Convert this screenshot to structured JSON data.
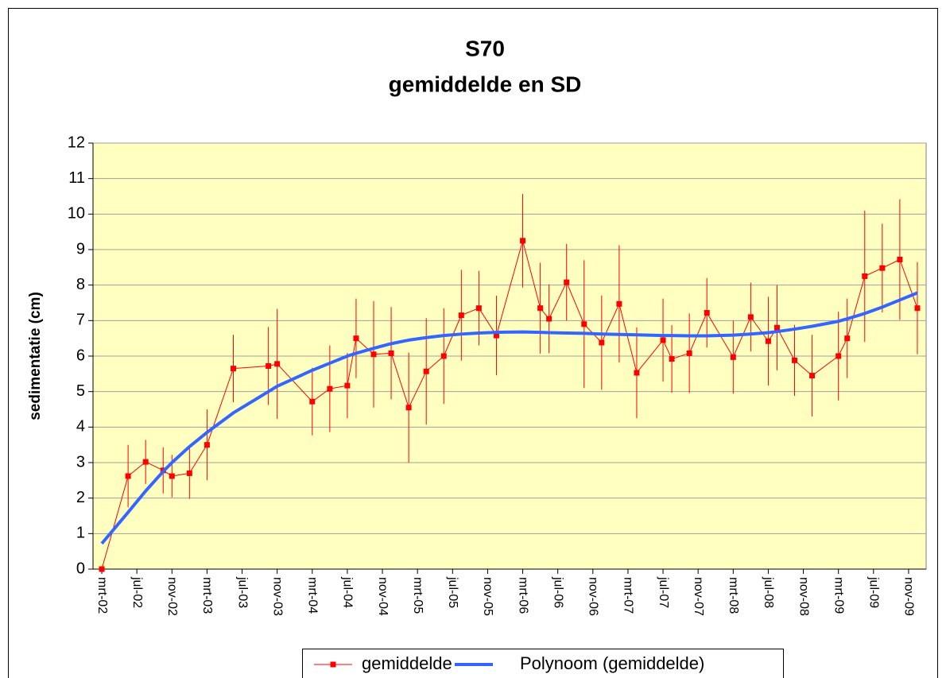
{
  "chart_data": {
    "type": "line",
    "title": "S70",
    "subtitle": "gemiddelde en SD",
    "y_label": "sedimentatie (cm)",
    "x": [
      "2002-03",
      "2002-06",
      "2002-08",
      "2002-10",
      "2002-11",
      "2003-01",
      "2003-03",
      "2003-06",
      "2003-10",
      "2003-11",
      "2004-03",
      "2004-05",
      "2004-07",
      "2004-08",
      "2004-10",
      "2004-12",
      "2005-02",
      "2005-04",
      "2005-06",
      "2005-08",
      "2005-10",
      "2005-12",
      "2006-03",
      "2006-05",
      "2006-06",
      "2006-08",
      "2006-10",
      "2006-12",
      "2007-02",
      "2007-04",
      "2007-07",
      "2007-08",
      "2007-10",
      "2007-12",
      "2008-03",
      "2008-05",
      "2008-07",
      "2008-08",
      "2008-10",
      "2008-12",
      "2009-03",
      "2009-04",
      "2009-06",
      "2009-08",
      "2009-10",
      "2009-12"
    ],
    "series": [
      {
        "name": "gemiddelde",
        "color": "#ff0000",
        "marker": "square",
        "values": [
          0.0,
          2.62,
          3.02,
          2.78,
          2.62,
          2.7,
          3.5,
          5.65,
          5.72,
          5.78,
          4.72,
          5.08,
          5.17,
          6.5,
          6.05,
          6.08,
          4.55,
          5.57,
          6.0,
          7.15,
          7.35,
          6.58,
          9.25,
          7.35,
          7.05,
          8.08,
          6.9,
          6.38,
          7.47,
          5.53,
          6.45,
          5.92,
          6.08,
          7.22,
          5.97,
          7.1,
          6.42,
          6.8,
          5.88,
          5.45,
          6.0,
          6.5,
          8.25,
          8.48,
          8.72,
          7.35
        ],
        "errors": [
          0.0,
          0.88,
          0.62,
          0.65,
          0.6,
          0.72,
          1.0,
          0.95,
          1.1,
          1.55,
          0.95,
          1.22,
          0.92,
          1.12,
          1.5,
          1.3,
          1.55,
          1.5,
          1.35,
          1.28,
          1.05,
          1.12,
          1.32,
          1.28,
          0.97,
          1.08,
          1.8,
          1.33,
          1.65,
          1.28,
          1.17,
          0.95,
          1.12,
          0.98,
          1.03,
          0.97,
          1.25,
          1.2,
          1.0,
          1.15,
          1.25,
          1.12,
          1.85,
          1.25,
          1.7,
          1.3
        ]
      },
      {
        "name": "Polynoom (gemiddelde)",
        "color": "#3366ff",
        "marker": "none",
        "values": [
          0.72,
          1.6,
          2.2,
          2.75,
          3.0,
          3.45,
          3.85,
          4.4,
          5.0,
          5.15,
          5.6,
          5.8,
          6.0,
          6.08,
          6.22,
          6.35,
          6.45,
          6.52,
          6.58,
          6.62,
          6.65,
          6.67,
          6.68,
          6.67,
          6.66,
          6.65,
          6.64,
          6.62,
          6.61,
          6.6,
          6.58,
          6.58,
          6.57,
          6.57,
          6.59,
          6.62,
          6.66,
          6.69,
          6.76,
          6.84,
          6.98,
          7.05,
          7.2,
          7.38,
          7.58,
          7.78
        ]
      }
    ],
    "xlim": [
      "2002-02",
      "2010-01"
    ],
    "xticks": [
      {
        "value": "2002-03",
        "label": "mrt-02"
      },
      {
        "value": "2002-07",
        "label": "jul-02"
      },
      {
        "value": "2002-11",
        "label": "nov-02"
      },
      {
        "value": "2003-03",
        "label": "mrt-03"
      },
      {
        "value": "2003-07",
        "label": "jul-03"
      },
      {
        "value": "2003-11",
        "label": "nov-03"
      },
      {
        "value": "2004-03",
        "label": "mrt-04"
      },
      {
        "value": "2004-07",
        "label": "jul-04"
      },
      {
        "value": "2004-11",
        "label": "nov-04"
      },
      {
        "value": "2005-03",
        "label": "mrt-05"
      },
      {
        "value": "2005-07",
        "label": "jul-05"
      },
      {
        "value": "2005-11",
        "label": "nov-05"
      },
      {
        "value": "2006-03",
        "label": "mrt-06"
      },
      {
        "value": "2006-07",
        "label": "jul-06"
      },
      {
        "value": "2006-11",
        "label": "nov-06"
      },
      {
        "value": "2007-03",
        "label": "mrt-07"
      },
      {
        "value": "2007-07",
        "label": "jul-07"
      },
      {
        "value": "2007-11",
        "label": "nov-07"
      },
      {
        "value": "2008-03",
        "label": "mrt-08"
      },
      {
        "value": "2008-07",
        "label": "jul-08"
      },
      {
        "value": "2008-11",
        "label": "nov-08"
      },
      {
        "value": "2009-03",
        "label": "mrt-09"
      },
      {
        "value": "2009-07",
        "label": "jul-09"
      },
      {
        "value": "2009-11",
        "label": "nov-09"
      }
    ],
    "ylim": [
      0,
      12
    ],
    "yticks": [
      0,
      1,
      2,
      3,
      4,
      5,
      6,
      7,
      8,
      9,
      10,
      11,
      12
    ],
    "grid": true,
    "plot_background": "#ffffc0",
    "legend": "bottom"
  }
}
